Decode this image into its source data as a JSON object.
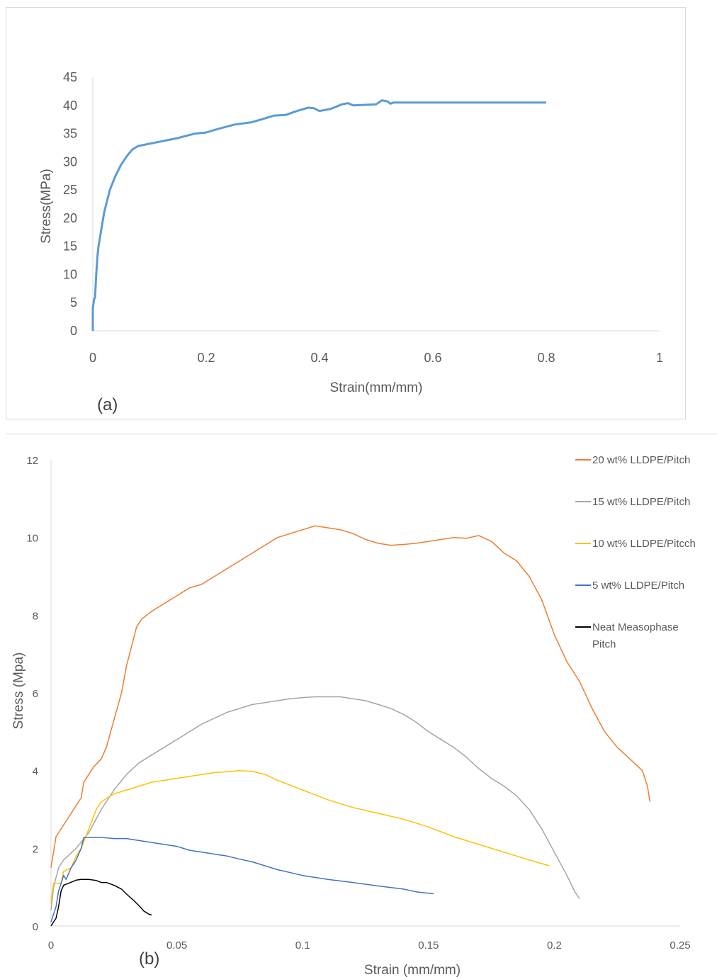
{
  "chart_data": [
    {
      "type": "line",
      "panel_label": "(a)",
      "xlabel": "Strain(mm/mm)",
      "ylabel": "Stress(MPa)",
      "xlim": [
        0,
        1
      ],
      "ylim": [
        0,
        45
      ],
      "x_ticks": [
        "0",
        "0.2",
        "0.4",
        "0.6",
        "0.8",
        "1"
      ],
      "y_ticks": [
        "0",
        "5",
        "10",
        "15",
        "20",
        "25",
        "30",
        "35",
        "40",
        "45"
      ],
      "grid": false,
      "legend": "none",
      "series": [
        {
          "color": "#5b9bd5",
          "points": [
            [
              0,
              0
            ],
            [
              0,
              4
            ],
            [
              0.002,
              5.5
            ],
            [
              0.004,
              6
            ],
            [
              0.006,
              10
            ],
            [
              0.008,
              13
            ],
            [
              0.01,
              15
            ],
            [
              0.015,
              18
            ],
            [
              0.02,
              21
            ],
            [
              0.025,
              23
            ],
            [
              0.03,
              25
            ],
            [
              0.04,
              27.5
            ],
            [
              0.05,
              29.5
            ],
            [
              0.06,
              31
            ],
            [
              0.07,
              32.2
            ],
            [
              0.08,
              32.8
            ],
            [
              0.1,
              33.2
            ],
            [
              0.12,
              33.6
            ],
            [
              0.15,
              34.2
            ],
            [
              0.18,
              35
            ],
            [
              0.2,
              35.2
            ],
            [
              0.22,
              35.8
            ],
            [
              0.25,
              36.6
            ],
            [
              0.28,
              37
            ],
            [
              0.3,
              37.6
            ],
            [
              0.32,
              38.2
            ],
            [
              0.34,
              38.3
            ],
            [
              0.36,
              39
            ],
            [
              0.38,
              39.6
            ],
            [
              0.39,
              39.5
            ],
            [
              0.4,
              39
            ],
            [
              0.42,
              39.4
            ],
            [
              0.44,
              40.2
            ],
            [
              0.45,
              40.4
            ],
            [
              0.46,
              40
            ],
            [
              0.48,
              40.1
            ],
            [
              0.5,
              40.2
            ],
            [
              0.51,
              40.9
            ],
            [
              0.52,
              40.7
            ],
            [
              0.525,
              40.3
            ],
            [
              0.53,
              40.5
            ],
            [
              0.6,
              40.5
            ],
            [
              0.7,
              40.5
            ],
            [
              0.8,
              40.5
            ]
          ]
        }
      ]
    },
    {
      "type": "line",
      "panel_label": "(b)",
      "xlabel": "Strain (mm/mm)",
      "ylabel": "Stress (Mpa)",
      "xlim": [
        0,
        0.25
      ],
      "ylim": [
        0,
        12
      ],
      "x_ticks": [
        "0",
        "0.05",
        "0.1",
        "0.15",
        "0.2",
        "0.25"
      ],
      "y_ticks": [
        "0",
        "2",
        "4",
        "6",
        "8",
        "10",
        "12"
      ],
      "grid": false,
      "legend": "right",
      "series": [
        {
          "name": "20 wt% LLDPE/Pitch",
          "color": "#ed7d31",
          "points": [
            [
              0,
              1.5
            ],
            [
              0.002,
              2.3
            ],
            [
              0.005,
              2.6
            ],
            [
              0.008,
              2.9
            ],
            [
              0.01,
              3.1
            ],
            [
              0.012,
              3.3
            ],
            [
              0.013,
              3.7
            ],
            [
              0.015,
              3.9
            ],
            [
              0.017,
              4.1
            ],
            [
              0.02,
              4.3
            ],
            [
              0.022,
              4.6
            ],
            [
              0.025,
              5.3
            ],
            [
              0.028,
              6.0
            ],
            [
              0.03,
              6.7
            ],
            [
              0.032,
              7.2
            ],
            [
              0.034,
              7.7
            ],
            [
              0.036,
              7.9
            ],
            [
              0.04,
              8.1
            ],
            [
              0.045,
              8.3
            ],
            [
              0.05,
              8.5
            ],
            [
              0.055,
              8.7
            ],
            [
              0.06,
              8.8
            ],
            [
              0.065,
              9.0
            ],
            [
              0.07,
              9.2
            ],
            [
              0.075,
              9.4
            ],
            [
              0.08,
              9.6
            ],
            [
              0.085,
              9.8
            ],
            [
              0.09,
              10.0
            ],
            [
              0.095,
              10.1
            ],
            [
              0.1,
              10.2
            ],
            [
              0.105,
              10.3
            ],
            [
              0.11,
              10.25
            ],
            [
              0.115,
              10.2
            ],
            [
              0.12,
              10.1
            ],
            [
              0.125,
              9.95
            ],
            [
              0.13,
              9.85
            ],
            [
              0.135,
              9.8
            ],
            [
              0.14,
              9.82
            ],
            [
              0.145,
              9.85
            ],
            [
              0.15,
              9.9
            ],
            [
              0.155,
              9.95
            ],
            [
              0.16,
              10.0
            ],
            [
              0.165,
              9.98
            ],
            [
              0.17,
              10.05
            ],
            [
              0.175,
              9.9
            ],
            [
              0.18,
              9.6
            ],
            [
              0.185,
              9.4
            ],
            [
              0.19,
              9.0
            ],
            [
              0.195,
              8.4
            ],
            [
              0.2,
              7.5
            ],
            [
              0.205,
              6.8
            ],
            [
              0.21,
              6.3
            ],
            [
              0.215,
              5.6
            ],
            [
              0.22,
              5.0
            ],
            [
              0.225,
              4.6
            ],
            [
              0.23,
              4.3
            ],
            [
              0.235,
              4.0
            ],
            [
              0.237,
              3.6
            ],
            [
              0.238,
              3.2
            ]
          ]
        },
        {
          "name": "15 wt% LLDPE/Pitch",
          "color": "#a5a5a5",
          "points": [
            [
              0,
              0.4
            ],
            [
              0.001,
              1.0
            ],
            [
              0.003,
              1.5
            ],
            [
              0.005,
              1.7
            ],
            [
              0.01,
              2.0
            ],
            [
              0.015,
              2.4
            ],
            [
              0.02,
              3.0
            ],
            [
              0.025,
              3.5
            ],
            [
              0.03,
              3.9
            ],
            [
              0.035,
              4.2
            ],
            [
              0.04,
              4.4
            ],
            [
              0.045,
              4.6
            ],
            [
              0.05,
              4.8
            ],
            [
              0.055,
              5.0
            ],
            [
              0.06,
              5.2
            ],
            [
              0.065,
              5.35
            ],
            [
              0.07,
              5.5
            ],
            [
              0.075,
              5.6
            ],
            [
              0.08,
              5.7
            ],
            [
              0.085,
              5.75
            ],
            [
              0.09,
              5.8
            ],
            [
              0.095,
              5.85
            ],
            [
              0.1,
              5.88
            ],
            [
              0.105,
              5.9
            ],
            [
              0.11,
              5.9
            ],
            [
              0.115,
              5.9
            ],
            [
              0.12,
              5.85
            ],
            [
              0.125,
              5.8
            ],
            [
              0.13,
              5.7
            ],
            [
              0.135,
              5.6
            ],
            [
              0.14,
              5.45
            ],
            [
              0.145,
              5.25
            ],
            [
              0.15,
              5.0
            ],
            [
              0.155,
              4.8
            ],
            [
              0.16,
              4.6
            ],
            [
              0.165,
              4.35
            ],
            [
              0.17,
              4.05
            ],
            [
              0.175,
              3.8
            ],
            [
              0.18,
              3.6
            ],
            [
              0.185,
              3.35
            ],
            [
              0.19,
              3.0
            ],
            [
              0.195,
              2.5
            ],
            [
              0.2,
              1.9
            ],
            [
              0.205,
              1.3
            ],
            [
              0.208,
              0.9
            ],
            [
              0.21,
              0.7
            ]
          ]
        },
        {
          "name": "10 wt% LLDPE/Pitcch",
          "color": "#ffc000",
          "points": [
            [
              0,
              0.6
            ],
            [
              0.001,
              1.1
            ],
            [
              0.004,
              1.1
            ],
            [
              0.005,
              1.4
            ],
            [
              0.008,
              1.5
            ],
            [
              0.01,
              1.8
            ],
            [
              0.012,
              2.0
            ],
            [
              0.015,
              2.5
            ],
            [
              0.018,
              3.0
            ],
            [
              0.02,
              3.2
            ],
            [
              0.025,
              3.4
            ],
            [
              0.03,
              3.5
            ],
            [
              0.035,
              3.6
            ],
            [
              0.04,
              3.7
            ],
            [
              0.045,
              3.75
            ],
            [
              0.05,
              3.8
            ],
            [
              0.055,
              3.85
            ],
            [
              0.06,
              3.9
            ],
            [
              0.065,
              3.95
            ],
            [
              0.07,
              3.97
            ],
            [
              0.075,
              4.0
            ],
            [
              0.08,
              3.98
            ],
            [
              0.085,
              3.9
            ],
            [
              0.09,
              3.75
            ],
            [
              0.1,
              3.5
            ],
            [
              0.11,
              3.25
            ],
            [
              0.12,
              3.05
            ],
            [
              0.13,
              2.9
            ],
            [
              0.14,
              2.75
            ],
            [
              0.15,
              2.55
            ],
            [
              0.16,
              2.3
            ],
            [
              0.17,
              2.1
            ],
            [
              0.18,
              1.9
            ],
            [
              0.19,
              1.7
            ],
            [
              0.198,
              1.55
            ]
          ]
        },
        {
          "name": "5 wt% LLDPE/Pitch",
          "color": "#4472c4",
          "points": [
            [
              0,
              0.1
            ],
            [
              0.002,
              0.5
            ],
            [
              0.003,
              0.9
            ],
            [
              0.005,
              1.3
            ],
            [
              0.006,
              1.2
            ],
            [
              0.008,
              1.5
            ],
            [
              0.01,
              1.7
            ],
            [
              0.012,
              2.0
            ],
            [
              0.013,
              2.28
            ],
            [
              0.02,
              2.28
            ],
            [
              0.025,
              2.25
            ],
            [
              0.03,
              2.25
            ],
            [
              0.035,
              2.2
            ],
            [
              0.04,
              2.15
            ],
            [
              0.045,
              2.1
            ],
            [
              0.05,
              2.05
            ],
            [
              0.055,
              1.95
            ],
            [
              0.06,
              1.9
            ],
            [
              0.065,
              1.85
            ],
            [
              0.07,
              1.8
            ],
            [
              0.075,
              1.72
            ],
            [
              0.08,
              1.65
            ],
            [
              0.085,
              1.55
            ],
            [
              0.09,
              1.45
            ],
            [
              0.1,
              1.3
            ],
            [
              0.11,
              1.2
            ],
            [
              0.12,
              1.12
            ],
            [
              0.13,
              1.03
            ],
            [
              0.14,
              0.95
            ],
            [
              0.145,
              0.88
            ],
            [
              0.152,
              0.83
            ]
          ]
        },
        {
          "name": "Neat Measophase\nPitch",
          "color": "#000000",
          "points": [
            [
              0,
              0
            ],
            [
              0.002,
              0.2
            ],
            [
              0.003,
              0.5
            ],
            [
              0.004,
              0.9
            ],
            [
              0.005,
              1.05
            ],
            [
              0.007,
              1.1
            ],
            [
              0.01,
              1.18
            ],
            [
              0.012,
              1.2
            ],
            [
              0.015,
              1.2
            ],
            [
              0.018,
              1.17
            ],
            [
              0.02,
              1.12
            ],
            [
              0.022,
              1.12
            ],
            [
              0.025,
              1.05
            ],
            [
              0.028,
              0.95
            ],
            [
              0.03,
              0.82
            ],
            [
              0.033,
              0.65
            ],
            [
              0.035,
              0.52
            ],
            [
              0.037,
              0.38
            ],
            [
              0.039,
              0.3
            ],
            [
              0.04,
              0.28
            ]
          ]
        }
      ]
    }
  ]
}
